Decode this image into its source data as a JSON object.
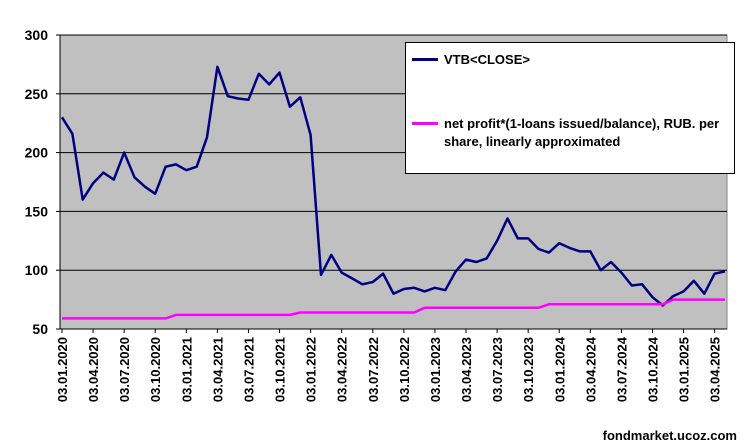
{
  "chart_data": {
    "type": "line",
    "categories": [
      "03.01.2020",
      null,
      null,
      "03.04.2020",
      null,
      null,
      "03.07.2020",
      null,
      null,
      "03.10.2020",
      null,
      null,
      "03.01.2021",
      null,
      null,
      "03.04.2021",
      null,
      null,
      "03.07.2021",
      null,
      null,
      "03.10.2021",
      null,
      null,
      "03.01.2022",
      null,
      null,
      "03.04.2022",
      null,
      null,
      "03.07.2022",
      null,
      null,
      "03.10.2022",
      null,
      null,
      "03.01.2023",
      null,
      null,
      "03.04.2023",
      null,
      null,
      "03.07.2023",
      null,
      null,
      "03.10.2023",
      null,
      null,
      "03.01.2024",
      null,
      null,
      "03.04.2024",
      null,
      null,
      "03.07.2024",
      null,
      null,
      "03.10.2024",
      null,
      null,
      "03.01.2025",
      null,
      null,
      "03.04.2025",
      null
    ],
    "series": [
      {
        "name": "VTB<CLOSE>",
        "color": "#000080",
        "values": [
          230,
          216,
          160,
          174,
          183,
          177,
          200,
          179,
          171,
          165,
          188,
          190,
          185,
          188,
          213,
          273,
          248,
          246,
          245,
          267,
          258,
          268,
          239,
          247,
          215,
          96,
          113,
          98,
          93,
          88,
          90,
          97,
          80,
          84,
          85,
          82,
          85,
          83,
          99,
          109,
          107,
          110,
          125,
          144,
          127,
          127,
          118,
          115,
          123,
          119,
          116,
          116,
          100,
          107,
          98,
          87,
          88,
          77,
          70,
          78,
          82,
          91,
          80,
          97,
          99
        ]
      },
      {
        "name": "net profit*(1-loans issued/balance), RUB. per share, linearly approximated",
        "color": "#ff00ff",
        "values": [
          59,
          59,
          59,
          59,
          59,
          59,
          59,
          59,
          59,
          59,
          59,
          62,
          62,
          62,
          62,
          62,
          62,
          62,
          62,
          62,
          62,
          62,
          62,
          64,
          64,
          64,
          64,
          64,
          64,
          64,
          64,
          64,
          64,
          64,
          64,
          68,
          68,
          68,
          68,
          68,
          68,
          68,
          68,
          68,
          68,
          68,
          68,
          71,
          71,
          71,
          71,
          71,
          71,
          71,
          71,
          71,
          71,
          71,
          71,
          75,
          75,
          75,
          75,
          75,
          75
        ]
      }
    ],
    "ylim": [
      50,
      300
    ],
    "yticks": [
      50,
      100,
      150,
      200,
      250,
      300
    ],
    "grid": true,
    "legend": "top-right",
    "watermark": "fondmarket.ucoz.com"
  }
}
